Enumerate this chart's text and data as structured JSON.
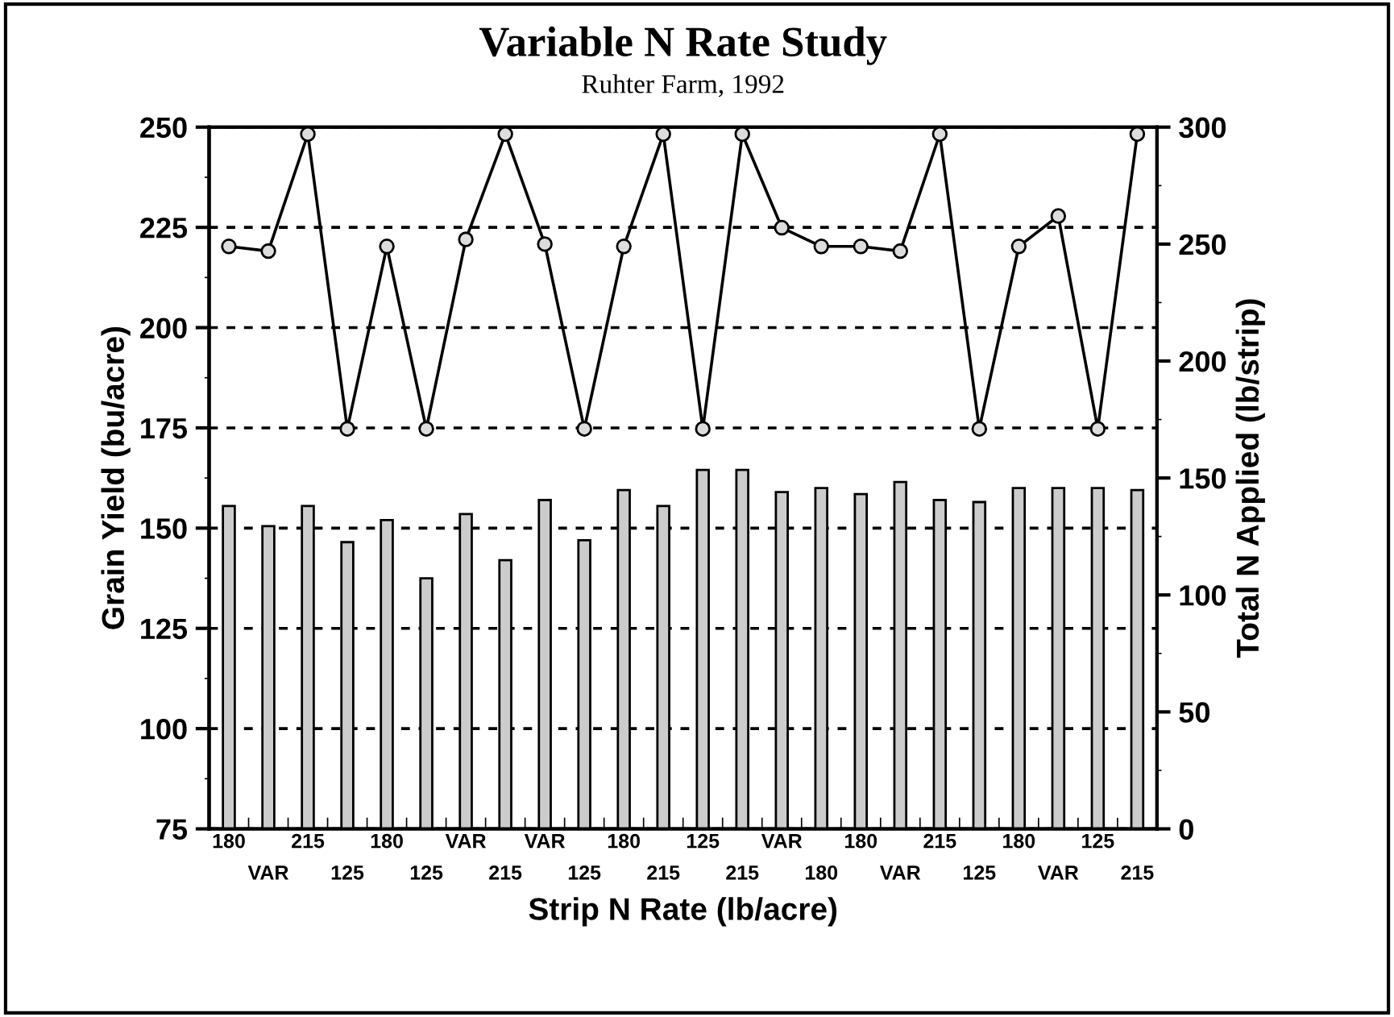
{
  "chart_data": {
    "type": "bar",
    "title": "Variable N Rate Study",
    "subtitle": "Ruhter Farm, 1992",
    "xlabel": "Strip N Rate (lb/acre)",
    "ylabel": "Grain Yield (bu/acre)",
    "y2label": "Total N Applied (lb/strip)",
    "categories": [
      "180",
      "VAR",
      "215",
      "125",
      "180",
      "125",
      "VAR",
      "215",
      "VAR",
      "125",
      "180",
      "215",
      "125",
      "215",
      "VAR",
      "180",
      "180",
      "VAR",
      "215",
      "125",
      "180",
      "VAR",
      "125",
      "215"
    ],
    "series": [
      {
        "color": "#cccccc",
        "values": [
          155.5,
          150.5,
          155.5,
          146.5,
          152,
          137.5,
          153.5,
          142,
          157,
          147,
          159.5,
          155.5,
          164.5,
          164.5,
          159,
          160,
          158.5,
          161.5,
          157,
          156.5,
          160,
          160,
          160,
          159.5
        ]
      },
      {
        "type": "line",
        "axis": "y2",
        "color": "#000000",
        "marker": "circle",
        "values": [
          249,
          247,
          297,
          171,
          249,
          171,
          252,
          297,
          250,
          171,
          249,
          297,
          171,
          297,
          257,
          249,
          249,
          247,
          297,
          171,
          249,
          262,
          171,
          297
        ]
      }
    ],
    "ylim": [
      75,
      250
    ],
    "yticks": [
      75,
      100,
      125,
      150,
      175,
      200,
      225,
      250
    ],
    "y2lim": [
      0,
      300
    ],
    "y2ticks": [
      0,
      50,
      100,
      150,
      200,
      250,
      300
    ],
    "grid": "y",
    "legend": false
  }
}
